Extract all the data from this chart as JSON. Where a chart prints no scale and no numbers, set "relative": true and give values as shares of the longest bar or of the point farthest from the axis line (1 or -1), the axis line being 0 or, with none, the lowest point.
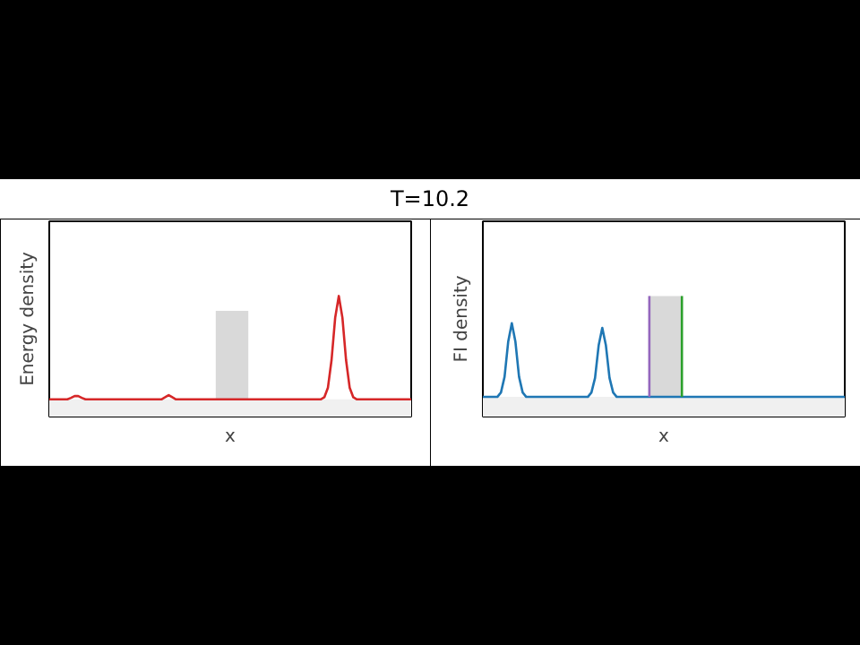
{
  "chart_data": [
    {
      "type": "line",
      "title": "T=10.2",
      "ylabel": "Energy density",
      "xlabel": "x",
      "relative": true,
      "tick_labels": false,
      "categories": [
        null,
        null,
        null,
        null,
        null,
        null,
        null,
        null,
        null,
        null,
        null,
        null,
        null,
        null,
        null,
        null,
        null,
        null,
        null,
        null,
        null,
        null,
        null,
        null,
        null,
        null,
        null,
        null,
        null,
        null,
        null,
        null,
        null,
        null,
        null,
        null,
        null,
        null,
        null,
        null,
        null,
        null,
        null,
        null,
        null,
        null,
        null,
        null,
        null,
        null,
        null,
        null,
        null,
        null,
        null,
        null,
        null,
        null,
        null,
        null,
        null,
        null,
        null,
        null,
        null,
        null,
        null,
        null,
        null,
        null,
        null,
        null,
        null,
        null,
        null,
        null,
        null,
        null,
        null,
        null,
        null,
        null,
        null,
        null,
        null,
        null,
        null,
        null,
        null,
        null,
        null,
        null,
        null,
        null,
        null,
        null,
        null,
        null,
        null,
        null,
        null
      ],
      "series": [
        {
          "type": "area",
          "color": "#f0f0f0",
          "values": [
            0.143,
            0.143,
            0.143,
            0.143,
            0.143,
            0.143,
            0.143,
            0.143,
            0.143,
            0.143,
            0.143,
            0.143,
            0.143,
            0.143,
            0.143,
            0.143,
            0.143,
            0.143,
            0.143,
            0.143,
            0.143,
            0.143,
            0.143,
            0.143,
            0.143,
            0.143,
            0.143,
            0.143,
            0.143,
            0.143,
            0.143,
            0.143,
            0.143,
            0.143,
            0.143,
            0.143,
            0.143,
            0.143,
            0.143,
            0.143,
            0.143,
            0.143,
            0.143,
            0.143,
            0.143,
            0.143,
            0.143,
            0.143,
            0.143,
            0.143,
            0.143,
            0.143,
            0.143,
            0.143,
            0.143,
            0.143,
            0.143,
            0.143,
            0.143,
            0.143,
            0.143,
            0.143,
            0.143,
            0.143,
            0.143,
            0.143,
            0.143,
            0.143,
            0.143,
            0.143,
            0.143,
            0.143,
            0.143,
            0.143,
            0.143,
            0.143,
            0.143,
            0.143,
            0.143,
            0.143,
            0.143,
            0.143,
            0.143,
            0.143,
            0.143,
            0.143,
            0.143,
            0.143,
            0.143,
            0.143,
            0.143,
            0.143,
            0.143,
            0.143,
            0.143,
            0.143,
            0.143,
            0.143,
            0.143,
            0.143,
            0.143
          ]
        },
        {
          "type": "area",
          "color": "#d9d9d9",
          "values": [
            null,
            null,
            null,
            null,
            null,
            null,
            null,
            null,
            null,
            null,
            null,
            null,
            null,
            null,
            null,
            null,
            null,
            null,
            null,
            null,
            null,
            null,
            null,
            null,
            null,
            null,
            null,
            null,
            null,
            null,
            null,
            null,
            null,
            null,
            null,
            null,
            null,
            null,
            null,
            null,
            null,
            null,
            null,
            null,
            null,
            null,
            0.877,
            0.877,
            0.877,
            0.877,
            0.877,
            0.877,
            0.877,
            0.877,
            0.877,
            0.877,
            null,
            null,
            null,
            null,
            null,
            null,
            null,
            null,
            null,
            null,
            null,
            null,
            null,
            null,
            null,
            null,
            null,
            null,
            null,
            null,
            null,
            null,
            null,
            null,
            null,
            null,
            null,
            null,
            null,
            null,
            null,
            null,
            null,
            null,
            null,
            null,
            null,
            null,
            null,
            null,
            null,
            null,
            null,
            null,
            null
          ]
        },
        {
          "color": "#d62728",
          "values": [
            0.143,
            0.143,
            0.143,
            0.143,
            0.143,
            0.143,
            0.155,
            0.17,
            0.17,
            0.155,
            0.143,
            0.143,
            0.143,
            0.143,
            0.143,
            0.143,
            0.143,
            0.143,
            0.143,
            0.143,
            0.143,
            0.143,
            0.143,
            0.143,
            0.143,
            0.143,
            0.143,
            0.143,
            0.143,
            0.143,
            0.143,
            0.143,
            0.16,
            0.178,
            0.16,
            0.143,
            0.143,
            0.143,
            0.143,
            0.143,
            0.143,
            0.143,
            0.143,
            0.143,
            0.143,
            0.143,
            0.143,
            0.143,
            0.143,
            0.143,
            0.143,
            0.143,
            0.143,
            0.143,
            0.143,
            0.143,
            0.143,
            0.143,
            0.143,
            0.143,
            0.143,
            0.143,
            0.143,
            0.143,
            0.143,
            0.143,
            0.143,
            0.143,
            0.143,
            0.143,
            0.143,
            0.143,
            0.143,
            0.143,
            0.143,
            0.143,
            0.16,
            0.24,
            0.47,
            0.82,
            1.0,
            0.82,
            0.47,
            0.24,
            0.16,
            0.143,
            0.143,
            0.143,
            0.143,
            0.143,
            0.143,
            0.143,
            0.143,
            0.143,
            0.143,
            0.143,
            0.143,
            0.143,
            0.143,
            0.143,
            0.143
          ]
        }
      ]
    },
    {
      "type": "line",
      "ylabel": "FI density",
      "xlabel": "x",
      "relative": true,
      "tick_labels": false,
      "categories": [
        null,
        null,
        null,
        null,
        null,
        null,
        null,
        null,
        null,
        null,
        null,
        null,
        null,
        null,
        null,
        null,
        null,
        null,
        null,
        null,
        null,
        null,
        null,
        null,
        null,
        null,
        null,
        null,
        null,
        null,
        null,
        null,
        null,
        null,
        null,
        null,
        null,
        null,
        null,
        null,
        null,
        null,
        null,
        null,
        null,
        null,
        null,
        null,
        null,
        null,
        null,
        null,
        null,
        null,
        null,
        null,
        null,
        null,
        null,
        null,
        null,
        null,
        null,
        null,
        null,
        null,
        null,
        null,
        null,
        null,
        null,
        null,
        null,
        null,
        null,
        null,
        null,
        null,
        null,
        null,
        null,
        null,
        null,
        null,
        null,
        null,
        null,
        null,
        null,
        null,
        null,
        null,
        null,
        null,
        null,
        null,
        null,
        null,
        null,
        null,
        null
      ],
      "series": [
        {
          "type": "area",
          "color": "#f0f0f0",
          "values": [
            0.163,
            0.163,
            0.163,
            0.163,
            0.163,
            0.163,
            0.163,
            0.163,
            0.163,
            0.163,
            0.163,
            0.163,
            0.163,
            0.163,
            0.163,
            0.163,
            0.163,
            0.163,
            0.163,
            0.163,
            0.163,
            0.163,
            0.163,
            0.163,
            0.163,
            0.163,
            0.163,
            0.163,
            0.163,
            0.163,
            0.163,
            0.163,
            0.163,
            0.163,
            0.163,
            0.163,
            0.163,
            0.163,
            0.163,
            0.163,
            0.163,
            0.163,
            0.163,
            0.163,
            0.163,
            0.163,
            0.163,
            0.163,
            0.163,
            0.163,
            0.163,
            0.163,
            0.163,
            0.163,
            0.163,
            0.163,
            0.163,
            0.163,
            0.163,
            0.163,
            0.163,
            0.163,
            0.163,
            0.163,
            0.163,
            0.163,
            0.163,
            0.163,
            0.163,
            0.163,
            0.163,
            0.163,
            0.163,
            0.163,
            0.163,
            0.163,
            0.163,
            0.163,
            0.163,
            0.163,
            0.163,
            0.163,
            0.163,
            0.163,
            0.163,
            0.163,
            0.163,
            0.163,
            0.163,
            0.163,
            0.163,
            0.163,
            0.163,
            0.163,
            0.163,
            0.163,
            0.163,
            0.163,
            0.163,
            0.163,
            0.163
          ]
        },
        {
          "type": "area",
          "color": "#d9d9d9",
          "values": [
            null,
            null,
            null,
            null,
            null,
            null,
            null,
            null,
            null,
            null,
            null,
            null,
            null,
            null,
            null,
            null,
            null,
            null,
            null,
            null,
            null,
            null,
            null,
            null,
            null,
            null,
            null,
            null,
            null,
            null,
            null,
            null,
            null,
            null,
            null,
            null,
            null,
            null,
            null,
            null,
            null,
            null,
            null,
            null,
            null,
            null,
            1,
            1,
            1,
            1,
            1,
            1,
            1,
            1,
            1,
            1,
            null,
            null,
            null,
            null,
            null,
            null,
            null,
            null,
            null,
            null,
            null,
            null,
            null,
            null,
            null,
            null,
            null,
            null,
            null,
            null,
            null,
            null,
            null,
            null,
            null,
            null,
            null,
            null,
            null,
            null,
            null,
            null,
            null,
            null,
            null,
            null,
            null,
            null,
            null,
            null,
            null,
            null,
            null,
            null,
            null
          ]
        },
        {
          "color": "#1f77b4",
          "values": [
            0.163,
            0.163,
            0.163,
            0.163,
            0.163,
            0.2,
            0.33,
            0.62,
            0.775,
            0.62,
            0.33,
            0.2,
            0.163,
            0.163,
            0.163,
            0.163,
            0.163,
            0.163,
            0.163,
            0.163,
            0.163,
            0.163,
            0.163,
            0.163,
            0.163,
            0.163,
            0.163,
            0.163,
            0.163,
            0.163,
            0.2,
            0.32,
            0.59,
            0.736,
            0.59,
            0.32,
            0.2,
            0.163,
            0.163,
            0.163,
            0.163,
            0.163,
            0.163,
            0.163,
            0.163,
            0.163,
            0.163,
            0.163,
            0.163,
            0.163,
            0.163,
            0.163,
            0.163,
            0.163,
            0.163,
            0.163,
            0.163,
            0.163,
            0.163,
            0.163,
            0.163,
            0.163,
            0.163,
            0.163,
            0.163,
            0.163,
            0.163,
            0.163,
            0.163,
            0.163,
            0.163,
            0.163,
            0.163,
            0.163,
            0.163,
            0.163,
            0.163,
            0.163,
            0.163,
            0.163,
            0.163,
            0.163,
            0.163,
            0.163,
            0.163,
            0.163,
            0.163,
            0.163,
            0.163,
            0.163,
            0.163,
            0.163,
            0.163,
            0.163,
            0.163,
            0.163,
            0.163,
            0.163,
            0.163,
            0.163,
            0.163
          ]
        }
      ]
    }
  ]
}
